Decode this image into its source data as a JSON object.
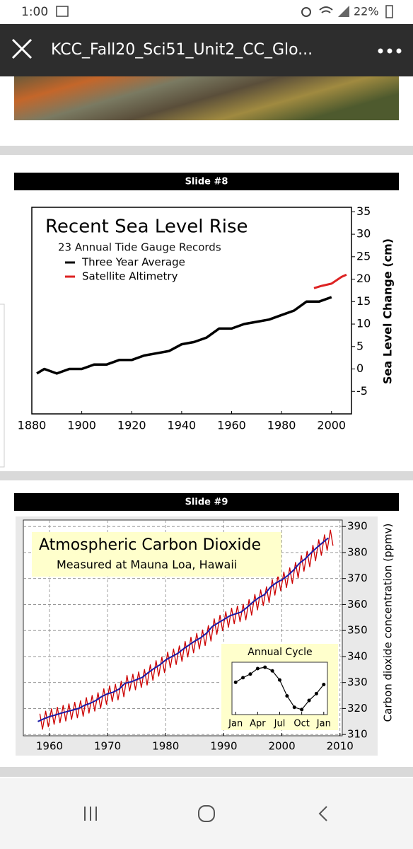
{
  "status_bar": {
    "time": "1:00",
    "battery": "22%"
  },
  "header": {
    "title": "KCC_Fall20_Sci51_Unit2_CC_Glo..."
  },
  "slides": [
    {
      "label": "Slide #8",
      "chart_data": {
        "type": "line",
        "title": "Recent Sea Level Rise",
        "subtitle": "23 Annual Tide Gauge Records",
        "y_label": "Sea Level Change (cm)",
        "y_axis_side": "right",
        "xlim": [
          1880,
          2008
        ],
        "xticks": [
          1880,
          1900,
          1920,
          1940,
          1960,
          1980,
          2000
        ],
        "ylim": [
          -10,
          36
        ],
        "yticks": [
          35,
          30,
          25,
          20,
          15,
          10,
          5,
          0,
          -5
        ],
        "grid": false,
        "series": [
          {
            "name": "Three Year Average",
            "color": "#000000",
            "x": [
              1882,
              1885,
              1890,
              1895,
              1900,
              1905,
              1910,
              1915,
              1920,
              1925,
              1930,
              1935,
              1940,
              1945,
              1950,
              1955,
              1960,
              1965,
              1970,
              1975,
              1980,
              1985,
              1990,
              1995,
              2000
            ],
            "values": [
              -1,
              0,
              -1,
              0,
              0,
              1,
              1,
              2,
              2,
              3,
              3.5,
              4,
              5.5,
              6,
              7,
              9,
              9,
              10,
              10.5,
              11,
              12,
              13,
              15,
              15,
              16
            ]
          },
          {
            "name": "Satellite Altimetry",
            "color": "#dd2222",
            "x": [
              1993,
              1996,
              2000,
              2004,
              2006
            ],
            "values": [
              18,
              18.5,
              19,
              20.5,
              21
            ]
          }
        ]
      }
    },
    {
      "label": "Slide #9",
      "chart_data": {
        "type": "line",
        "title": "Atmospheric Carbon Dioxide",
        "subtitle": "Measured at Mauna Loa, Hawaii",
        "y_label": "Carbon dioxide concentration (ppmv)",
        "y_axis_side": "right",
        "xlim": [
          1955.5,
          2010.4
        ],
        "xticks": [
          1960,
          1970,
          1980,
          1990,
          2000,
          2010
        ],
        "ylim": [
          309.5,
          392.5
        ],
        "yticks": [
          390,
          380,
          370,
          360,
          350,
          340,
          330,
          320,
          310
        ],
        "grid": true,
        "series": [
          {
            "color": "#cc0000",
            "x": [
              1958.35,
              1958.8,
              1959.35,
              1959.8,
              1960.35,
              1960.8,
              1961.35,
              1961.8,
              1962.35,
              1962.8,
              1963.35,
              1963.8,
              1964.35,
              1964.8,
              1965.35,
              1965.8,
              1966.35,
              1966.8,
              1967.35,
              1967.8,
              1968.35,
              1968.8,
              1969.35,
              1969.8,
              1970.35,
              1970.8,
              1971.35,
              1971.8,
              1972.35,
              1972.8,
              1973.35,
              1973.8,
              1974.35,
              1974.8,
              1975.35,
              1975.8,
              1976.35,
              1976.8,
              1977.35,
              1977.8,
              1978.35,
              1978.8,
              1979.35,
              1979.8,
              1980.35,
              1980.8,
              1981.35,
              1981.8,
              1982.35,
              1982.8,
              1983.35,
              1983.8,
              1984.35,
              1984.8,
              1985.35,
              1985.8,
              1986.35,
              1986.8,
              1987.35,
              1987.8,
              1988.35,
              1988.8,
              1989.35,
              1989.8,
              1990.35,
              1990.8,
              1991.35,
              1991.8,
              1992.35,
              1992.8,
              1993.35,
              1993.8,
              1994.35,
              1994.8,
              1995.35,
              1995.8,
              1996.35,
              1996.8,
              1997.35,
              1997.8,
              1998.35,
              1998.8,
              1999.35,
              1999.8,
              2000.35,
              2000.8,
              2001.35,
              2001.8,
              2002.35,
              2002.8,
              2003.35,
              2003.8,
              2004.35,
              2004.8,
              2005.35,
              2005.8,
              2006.35,
              2006.8,
              2007.35,
              2007.8,
              2008.35,
              2008.8
            ],
            "values": [
              318.0,
              312.0,
              319.0,
              313.0,
              319.9,
              313.9,
              320.5,
              314.5,
              321.2,
              315.2,
              321.8,
              315.8,
              322.4,
              316.4,
              323.0,
              317.0,
              324.2,
              318.2,
              325.0,
              319.0,
              326.1,
              320.1,
              327.6,
              321.6,
              328.7,
              322.7,
              329.3,
              323.3,
              330.5,
              324.5,
              332.7,
              326.7,
              333.2,
              327.2,
              334.1,
              328.1,
              335.0,
              329.0,
              336.8,
              330.8,
              338.4,
              332.4,
              339.8,
              333.8,
              341.7,
              335.7,
              342.9,
              336.9,
              344.1,
              338.1,
              345.8,
              339.8,
              347.4,
              341.4,
              348.9,
              342.9,
              350.2,
              344.2,
              351.9,
              345.9,
              354.5,
              348.5,
              355.9,
              349.9,
              357.2,
              351.2,
              358.6,
              352.6,
              359.4,
              353.4,
              360.1,
              354.1,
              361.9,
              355.9,
              363.9,
              357.9,
              365.6,
              359.6,
              366.8,
              360.8,
              369.6,
              363.6,
              371.3,
              365.3,
              372.5,
              366.5,
              374.1,
              368.1,
              376.2,
              370.2,
              378.8,
              372.8,
              380.5,
              374.5,
              382.8,
              376.8,
              384.9,
              378.9,
              386.8,
              380.8,
              388.6,
              382.6
            ]
          },
          {
            "color": "#1a1aa6",
            "x": [
              1958,
              1959,
              1960,
              1961,
              1962,
              1963,
              1964,
              1965,
              1966,
              1967,
              1968,
              1969,
              1970,
              1971,
              1972,
              1973,
              1974,
              1975,
              1976,
              1977,
              1978,
              1979,
              1980,
              1981,
              1982,
              1983,
              1984,
              1985,
              1986,
              1987,
              1988,
              1989,
              1990,
              1991,
              1992,
              1993,
              1994,
              1995,
              1996,
              1997,
              1998,
              1999,
              2000,
              2001,
              2002,
              2003,
              2004,
              2005,
              2006,
              2007,
              2008
            ],
            "values": [
              315.0,
              316.0,
              316.9,
              317.5,
              318.2,
              318.8,
              319.4,
              320.0,
              321.2,
              322.0,
              323.1,
              324.6,
              325.7,
              326.3,
              327.5,
              329.7,
              330.2,
              331.1,
              332.0,
              333.8,
              335.4,
              336.8,
              338.7,
              339.9,
              341.1,
              342.8,
              344.4,
              345.9,
              347.2,
              348.9,
              351.5,
              352.9,
              354.2,
              355.6,
              356.4,
              357.1,
              358.9,
              360.9,
              362.6,
              363.8,
              366.6,
              368.3,
              369.5,
              371.1,
              373.2,
              375.8,
              377.5,
              379.8,
              381.9,
              383.8,
              385.6
            ]
          }
        ],
        "inset": {
          "type": "line",
          "title": "Annual Cycle",
          "markers": true,
          "x": [
            0,
            1,
            2,
            3,
            4,
            5,
            6,
            7,
            8,
            9,
            10,
            11,
            12
          ],
          "xlim": [
            -0.5,
            12.5
          ],
          "xticks": [
            {
              "value": 0,
              "label": "Jan"
            },
            {
              "value": 3,
              "label": "Apr"
            },
            {
              "value": 6,
              "label": "Jul"
            },
            {
              "value": 9,
              "label": "Oct"
            },
            {
              "value": 12,
              "label": "Jan"
            }
          ],
          "ylim": [
            -7.1,
            4.4
          ],
          "series": [
            {
              "color": "#000000",
              "values": [
                0,
                1,
                1.8,
                3,
                3.3,
                2.5,
                0.5,
                -3,
                -5.5,
                -6,
                -4,
                -2.5,
                -0.5
              ]
            }
          ]
        }
      }
    }
  ]
}
